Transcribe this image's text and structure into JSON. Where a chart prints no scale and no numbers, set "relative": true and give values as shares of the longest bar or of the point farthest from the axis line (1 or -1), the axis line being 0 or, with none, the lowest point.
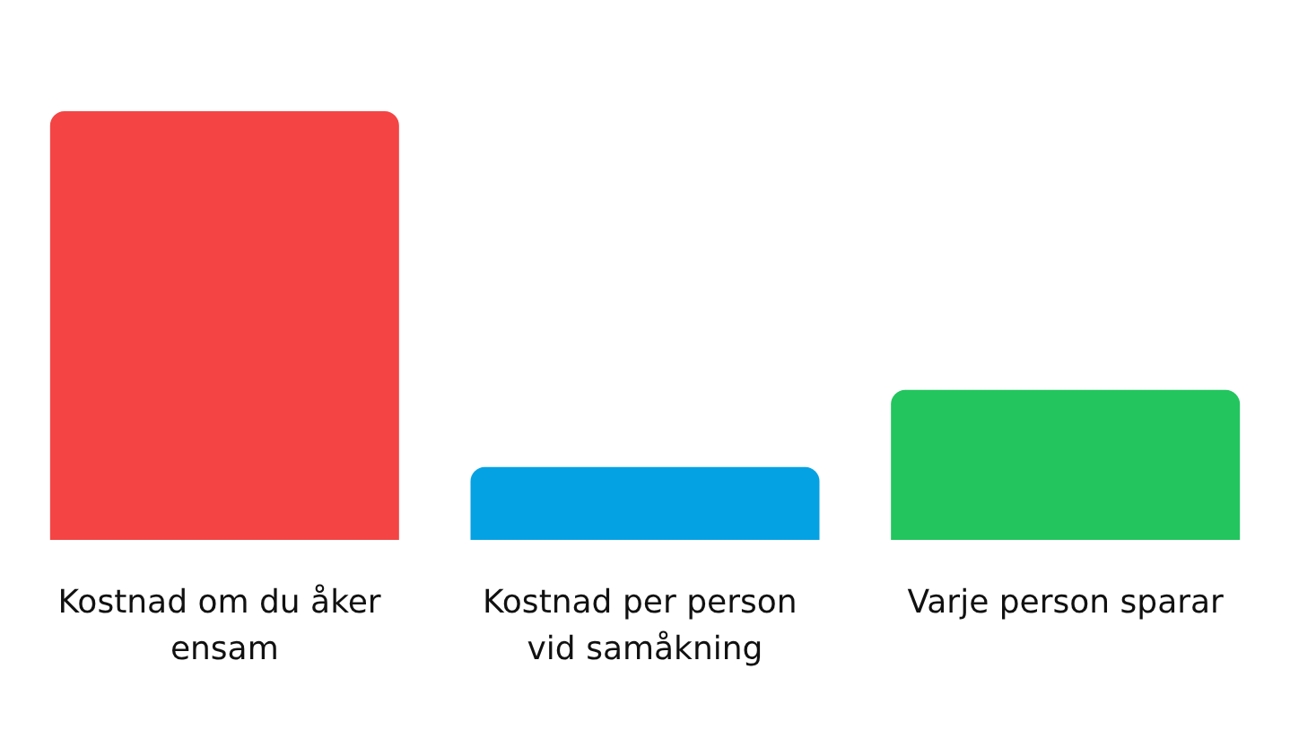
{
  "chart_data": {
    "type": "bar",
    "relative": true,
    "categories": [
      "Kostnad om du åker ensam",
      "Kostnad per person vid samåkning",
      "Varje person sparar"
    ],
    "values": [
      1,
      0.17,
      0.35
    ],
    "colors": [
      "#f44444",
      "#05a2e3",
      "#22c55e"
    ]
  }
}
